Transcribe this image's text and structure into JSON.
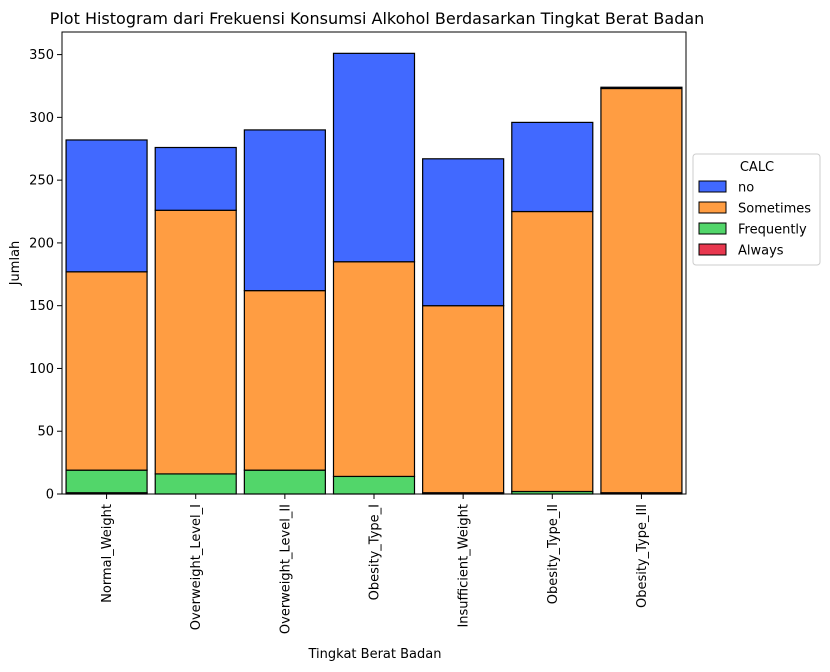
{
  "chart_data": {
    "type": "bar",
    "stacked": true,
    "title": "Plot Histogram dari Frekuensi Konsumsi Alkohol Berdasarkan Tingkat Berat Badan",
    "xlabel": "Tingkat Berat Badan",
    "ylabel": "Jumlah",
    "ylim": [
      0,
      368
    ],
    "yticks": [
      0,
      50,
      100,
      150,
      200,
      250,
      300,
      350
    ],
    "grid": false,
    "legend": {
      "title": "CALC",
      "placement": "right"
    },
    "categories": [
      "Normal_Weight",
      "Overweight_Level_I",
      "Overweight_Level_II",
      "Obesity_Type_I",
      "Insufficient_Weight",
      "Obesity_Type_II",
      "Obesity_Type_III"
    ],
    "series": [
      {
        "name": "no",
        "color": "#4169ff",
        "values": [
          105,
          50,
          128,
          166,
          117,
          71,
          1
        ]
      },
      {
        "name": "Sometimes",
        "color": "#ff9d42",
        "values": [
          158,
          210,
          143,
          171,
          149,
          223,
          322
        ]
      },
      {
        "name": "Frequently",
        "color": "#52d66a",
        "values": [
          18,
          16,
          19,
          14,
          0,
          2,
          0
        ]
      },
      {
        "name": "Always",
        "color": "#e8384f",
        "values": [
          1,
          0,
          0,
          0,
          1,
          0,
          1
        ]
      }
    ]
  }
}
